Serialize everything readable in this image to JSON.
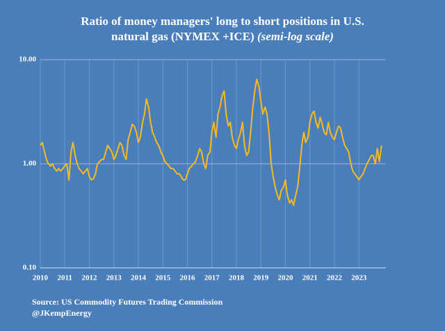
{
  "chart_data": {
    "type": "line",
    "title": [
      "Ratio of money managers' long to short positions in U.S.",
      "natural gas  (NYMEX +ICE)",
      "(semi-log scale)"
    ],
    "source": [
      "Source: US Commodity Futures Trading Commission",
      "@JKempEnergy"
    ],
    "yscale": "log",
    "grid": true,
    "ylim": [
      0.1,
      10
    ],
    "yticks": [
      {
        "value": 10,
        "label": "10.00"
      },
      {
        "value": 1,
        "label": "1.00"
      },
      {
        "value": 0.1,
        "label": "0.10"
      }
    ],
    "xlim": [
      2010,
      2024.1
    ],
    "xticks": [
      2010,
      2011,
      2012,
      2013,
      2014,
      2015,
      2016,
      2017,
      2018,
      2019,
      2020,
      2021,
      2022,
      2023
    ],
    "x": [
      2010.0,
      2010.08,
      2010.17,
      2010.25,
      2010.33,
      2010.42,
      2010.5,
      2010.58,
      2010.67,
      2010.75,
      2010.83,
      2010.92,
      2011.0,
      2011.08,
      2011.17,
      2011.25,
      2011.33,
      2011.42,
      2011.5,
      2011.58,
      2011.67,
      2011.75,
      2011.83,
      2011.92,
      2012.0,
      2012.08,
      2012.17,
      2012.25,
      2012.33,
      2012.42,
      2012.5,
      2012.58,
      2012.67,
      2012.75,
      2012.83,
      2012.92,
      2013.0,
      2013.08,
      2013.17,
      2013.25,
      2013.33,
      2013.42,
      2013.5,
      2013.58,
      2013.67,
      2013.75,
      2013.83,
      2013.92,
      2014.0,
      2014.08,
      2014.17,
      2014.25,
      2014.33,
      2014.42,
      2014.5,
      2014.58,
      2014.67,
      2014.75,
      2014.83,
      2014.92,
      2015.0,
      2015.08,
      2015.17,
      2015.25,
      2015.33,
      2015.42,
      2015.5,
      2015.58,
      2015.67,
      2015.75,
      2015.83,
      2015.92,
      2016.0,
      2016.08,
      2016.17,
      2016.25,
      2016.33,
      2016.42,
      2016.5,
      2016.58,
      2016.67,
      2016.75,
      2016.83,
      2016.92,
      2017.0,
      2017.08,
      2017.17,
      2017.25,
      2017.33,
      2017.42,
      2017.5,
      2017.58,
      2017.67,
      2017.75,
      2017.83,
      2017.92,
      2018.0,
      2018.08,
      2018.17,
      2018.25,
      2018.33,
      2018.42,
      2018.5,
      2018.58,
      2018.67,
      2018.75,
      2018.83,
      2018.92,
      2019.0,
      2019.08,
      2019.17,
      2019.25,
      2019.33,
      2019.42,
      2019.5,
      2019.58,
      2019.67,
      2019.75,
      2019.83,
      2019.92,
      2020.0,
      2020.08,
      2020.17,
      2020.25,
      2020.33,
      2020.42,
      2020.5,
      2020.58,
      2020.67,
      2020.75,
      2020.83,
      2020.92,
      2021.0,
      2021.08,
      2021.17,
      2021.25,
      2021.33,
      2021.42,
      2021.5,
      2021.58,
      2021.67,
      2021.75,
      2021.83,
      2021.92,
      2022.0,
      2022.08,
      2022.17,
      2022.25,
      2022.33,
      2022.42,
      2022.5,
      2022.58,
      2022.67,
      2022.75,
      2022.83,
      2022.92,
      2023.0,
      2023.08,
      2023.17,
      2023.25,
      2023.33,
      2023.42,
      2023.5,
      2023.58,
      2023.67,
      2023.75,
      2023.83,
      2023.92
    ],
    "series": [
      {
        "color": "#f7bb1f",
        "values": [
          1.5,
          1.6,
          1.3,
          1.1,
          1.0,
          0.95,
          1.0,
          0.9,
          0.85,
          0.9,
          0.85,
          0.9,
          0.95,
          1.0,
          0.7,
          1.3,
          1.6,
          1.2,
          1.0,
          0.9,
          0.85,
          0.8,
          0.85,
          0.9,
          0.75,
          0.7,
          0.72,
          0.8,
          1.0,
          1.05,
          1.1,
          1.1,
          1.3,
          1.5,
          1.4,
          1.3,
          1.1,
          1.2,
          1.4,
          1.6,
          1.5,
          1.2,
          1.1,
          1.7,
          2.0,
          2.4,
          2.3,
          2.0,
          1.6,
          1.8,
          2.5,
          3.0,
          4.2,
          3.5,
          2.5,
          2.0,
          1.8,
          1.6,
          1.5,
          1.3,
          1.2,
          1.05,
          1.0,
          0.95,
          0.9,
          0.9,
          0.85,
          0.8,
          0.8,
          0.75,
          0.7,
          0.7,
          0.8,
          0.9,
          0.95,
          1.0,
          1.05,
          1.2,
          1.4,
          1.3,
          1.0,
          0.9,
          1.2,
          1.3,
          2.0,
          2.5,
          1.8,
          3.0,
          3.5,
          4.5,
          5.0,
          3.0,
          2.3,
          2.5,
          1.8,
          1.5,
          1.4,
          1.7,
          2.0,
          2.5,
          1.5,
          1.2,
          1.3,
          2.0,
          3.5,
          5.0,
          6.5,
          5.5,
          4.0,
          3.0,
          3.5,
          3.0,
          2.0,
          1.0,
          0.75,
          0.6,
          0.5,
          0.45,
          0.55,
          0.6,
          0.7,
          0.5,
          0.42,
          0.45,
          0.4,
          0.5,
          0.6,
          0.9,
          1.5,
          2.0,
          1.6,
          1.8,
          2.5,
          3.0,
          3.2,
          2.5,
          2.2,
          2.8,
          2.4,
          2.0,
          1.9,
          2.5,
          2.0,
          1.8,
          1.7,
          2.0,
          2.3,
          2.2,
          1.8,
          1.5,
          1.4,
          1.3,
          1.0,
          0.85,
          0.8,
          0.75,
          0.7,
          0.75,
          0.8,
          0.9,
          1.0,
          1.1,
          1.2,
          1.2,
          1.0,
          1.4,
          1.05,
          1.5
        ]
      }
    ]
  }
}
